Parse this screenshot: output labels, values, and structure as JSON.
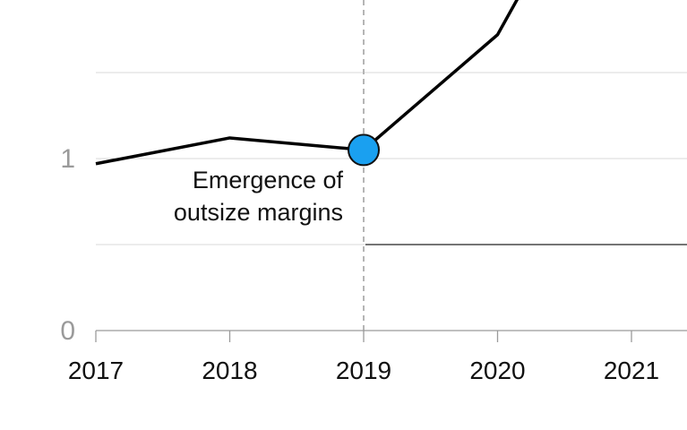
{
  "chart_data": {
    "type": "line",
    "title": "",
    "xlabel": "",
    "ylabel": "",
    "x": [
      2017,
      2018,
      2019,
      2020,
      2021
    ],
    "xlim": [
      2017,
      2021.4
    ],
    "ylim": [
      0,
      2.0
    ],
    "y_ticks": [
      "0",
      "1"
    ],
    "x_ticks": [
      "2017",
      "2018",
      "2019",
      "2020",
      "2021"
    ],
    "gridlines_y": [
      0.5,
      1,
      1.5
    ],
    "series": [
      {
        "x": [
          2017,
          2018,
          2019,
          2020,
          2020.2
        ],
        "y": [
          0.97,
          1.12,
          1.05,
          1.72,
          2.0
        ]
      }
    ],
    "highlight_point": {
      "x": 2019,
      "y": 1.05,
      "color": "#1aa0f0"
    },
    "vertical_marker_x": 2019,
    "reference_line": {
      "y": 0.5,
      "x_start": 2019
    },
    "annotation": {
      "line1": "Emergence of",
      "line2": "outsize margins"
    },
    "colors": {
      "line": "#000000",
      "grid": "#d9d9d9",
      "marker": "#1aa0f0",
      "vline": "#b5b5b5"
    },
    "grid": true,
    "legend": "none"
  }
}
